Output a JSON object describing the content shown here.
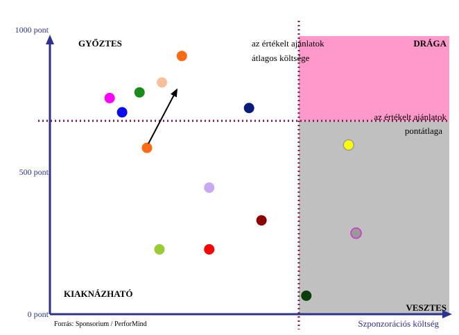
{
  "chart_data": {
    "type": "scatter",
    "title": "",
    "xlabel": "Szponzorációs költség",
    "ylabel": "",
    "ylim": [
      0,
      1000
    ],
    "y_ticks": [
      {
        "value": 1000,
        "label": "1000 pont"
      },
      {
        "value": 500,
        "label": "500 pont"
      },
      {
        "value": 0,
        "label": "0 pont"
      }
    ],
    "thresholds": {
      "x_label": "az értékelt ajánlatok átlagos költsége",
      "x_label_lines": [
        "az értékelt ajánlatok",
        "átlagos költsége"
      ],
      "y_value": 680,
      "y_label": "az értékelt ajánlatok pontátlaga",
      "y_label_lines": [
        "az értékelt ajánlatok",
        "pontátlaga"
      ]
    },
    "quadrants": {
      "top_left": "GYŐZTES",
      "top_right": "DRÁGA",
      "bottom_left": "KIAKNÁZHATÓ",
      "bottom_right": "VESZTES"
    },
    "colors": {
      "axis": "#2e3192",
      "threshold": "#8b1a4a",
      "dragа_fill": "#ff99cc",
      "veszes_fill": "#c0c0c0",
      "arrow": "#000000"
    },
    "points": [
      {
        "x": 0.53,
        "y": 908,
        "color": "#ff6a13"
      },
      {
        "x": 0.45,
        "y": 815,
        "color": "#f6c09a"
      },
      {
        "x": 0.36,
        "y": 780,
        "color": "#1a8a1a"
      },
      {
        "x": 0.24,
        "y": 760,
        "color": "#ff00ff"
      },
      {
        "x": 0.29,
        "y": 710,
        "color": "#0a0aee"
      },
      {
        "x": 0.8,
        "y": 725,
        "color": "#0a1a7a"
      },
      {
        "x": 0.39,
        "y": 585,
        "color": "#ff6a13"
      },
      {
        "x": 0.64,
        "y": 445,
        "color": "#c8a8f0"
      },
      {
        "x": 0.85,
        "y": 330,
        "color": "#8b0000"
      },
      {
        "x": 0.44,
        "y": 228,
        "color": "#99cc33"
      },
      {
        "x": 0.64,
        "y": 228,
        "color": "#ff0000"
      },
      {
        "x": 1.03,
        "y": 65,
        "color": "#0a3d0a"
      },
      {
        "x": 1.2,
        "y": 595,
        "color": "#ffff00",
        "stroke": "#999999"
      },
      {
        "x": 1.23,
        "y": 285,
        "color": "#999999",
        "stroke": "#cc33cc"
      }
    ],
    "x_threshold": 1.0,
    "x_range": [
      0,
      1.5
    ],
    "arrow": {
      "from": {
        "x": 0.39,
        "y": 585
      },
      "to": {
        "x": 0.51,
        "y": 790
      }
    },
    "source": "Forrás: Sponsorium / PerforMind"
  }
}
